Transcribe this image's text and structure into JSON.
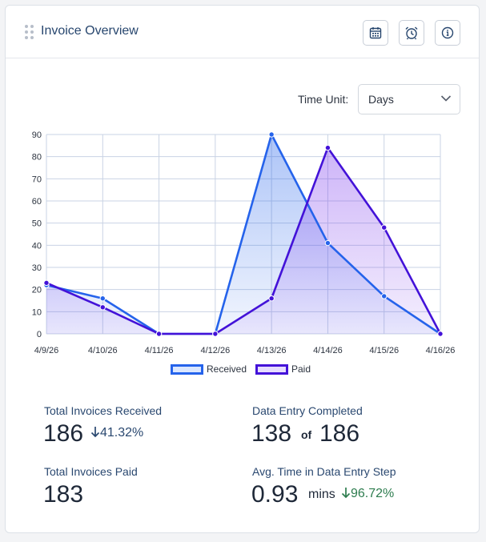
{
  "header": {
    "title": "Invoice Overview"
  },
  "icons": {
    "calendar": "calendar-icon",
    "alarm": "alarm-clock-icon",
    "info": "info-icon"
  },
  "controls": {
    "time_unit_label": "Time Unit:",
    "time_unit_value": "Days"
  },
  "colors": {
    "received": "#2563eb",
    "paid": "#4312d8",
    "grid": "#c9d3e4"
  },
  "chart_data": {
    "type": "area",
    "categories": [
      "4/9/26",
      "4/10/26",
      "4/11/26",
      "4/12/26",
      "4/13/26",
      "4/14/26",
      "4/15/26",
      "4/16/26"
    ],
    "series": [
      {
        "name": "Received",
        "values": [
          22,
          16,
          0,
          0,
          90,
          41,
          17,
          0
        ]
      },
      {
        "name": "Paid",
        "values": [
          23,
          12,
          0,
          0,
          16,
          84,
          48,
          0
        ]
      }
    ],
    "yticks": [
      0,
      10,
      20,
      30,
      40,
      50,
      60,
      70,
      80,
      90
    ],
    "ylim": [
      0,
      90
    ],
    "legend_position": "bottom"
  },
  "stats": {
    "received": {
      "label": "Total Invoices Received",
      "value": "186",
      "delta": "41.32%"
    },
    "data_entry": {
      "label": "Data Entry Completed",
      "done": "138",
      "of": "of",
      "total": "186"
    },
    "paid": {
      "label": "Total Invoices Paid",
      "value": "183"
    },
    "avg_time": {
      "label": "Avg. Time in Data Entry Step",
      "value": "0.93",
      "unit": "mins",
      "delta": "96.72%"
    }
  }
}
